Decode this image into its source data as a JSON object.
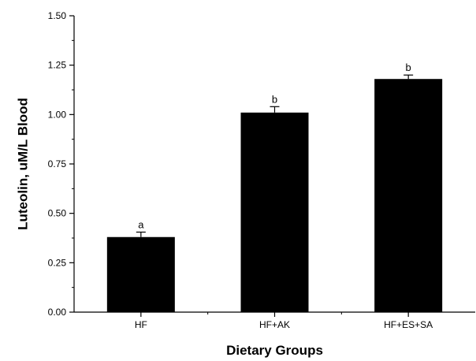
{
  "chart_data": {
    "type": "bar",
    "title": "",
    "xlabel": "Dietary Groups",
    "ylabel": "Luteolin, uM/L Blood",
    "ylim": [
      0,
      1.5
    ],
    "yticks": [
      "0.00",
      "0.25",
      "0.50",
      "0.75",
      "1.00",
      "1.25",
      "1.50"
    ],
    "categories": [
      "HF",
      "HF+AK",
      "HF+ES+SA"
    ],
    "values": [
      0.38,
      1.01,
      1.18
    ],
    "errors": [
      0.025,
      0.03,
      0.02
    ],
    "significance_labels": [
      "a",
      "b",
      "b"
    ],
    "grid": false,
    "bar_color": "#000000"
  }
}
